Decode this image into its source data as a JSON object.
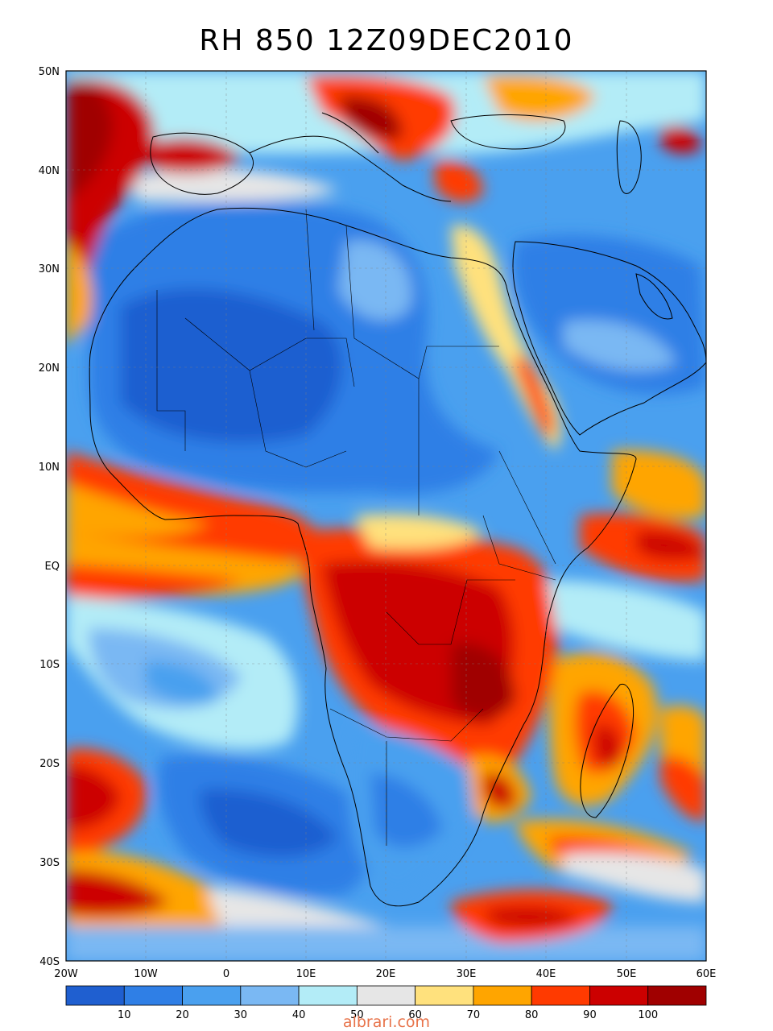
{
  "title": "RH 850 12Z09DEC2010",
  "watermark": "albrari.com",
  "lat_labels": [
    "50N",
    "40N",
    "30N",
    "20N",
    "10N",
    "EQ",
    "10S",
    "20S",
    "30S",
    "40S"
  ],
  "lon_labels": [
    "20W",
    "10W",
    "0",
    "10E",
    "20E",
    "30E",
    "40E",
    "50E",
    "60E"
  ],
  "colorbar": {
    "labels": [
      "10",
      "20",
      "30",
      "40",
      "50",
      "60",
      "70",
      "80",
      "90",
      "100"
    ],
    "colors": [
      "#1f5fd0",
      "#2f7fe6",
      "#4aa0ef",
      "#7ab8f3",
      "#b3ecf7",
      "#e6e6e6",
      "#ffe17d",
      "#ffa500",
      "#ff3a00",
      "#cc0000",
      "#a00000"
    ]
  },
  "map_extent": {
    "lon": [
      -20,
      60
    ],
    "lat": [
      -40,
      50
    ]
  }
}
